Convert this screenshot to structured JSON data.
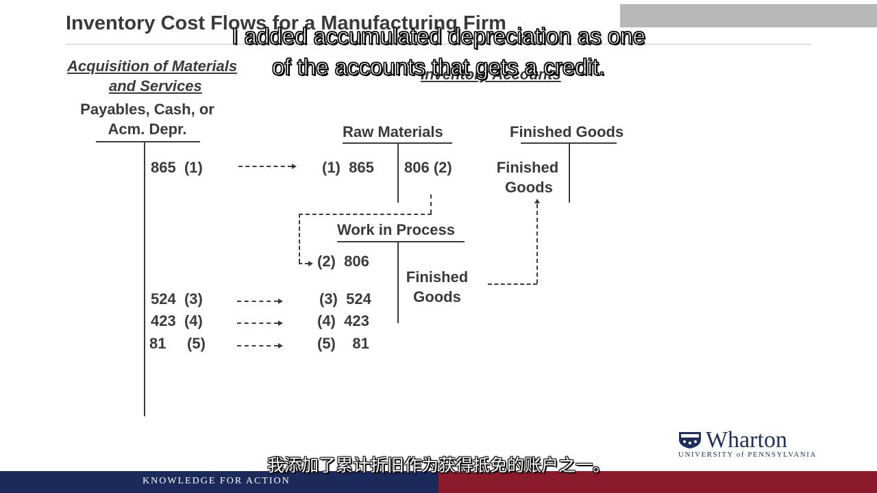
{
  "slide": {
    "title": "Inventory Cost Flows for a Manufacturing Firm",
    "left_section_heading_line1": "Acquisition of Materials",
    "left_section_heading_line2": "and Services",
    "right_section_heading": "Inventory Accounts"
  },
  "accounts": {
    "payables": {
      "name_line1": "Payables, Cash, or",
      "name_line2": "Acm. Depr.",
      "credits": [
        {
          "amount": "865",
          "ref": "(1)"
        },
        {
          "amount": "524",
          "ref": "(3)"
        },
        {
          "amount": "423",
          "ref": "(4)"
        },
        {
          "amount": "81",
          "ref": "(5)"
        }
      ]
    },
    "raw_materials": {
      "name": "Raw Materials",
      "debit": {
        "ref": "(1)",
        "amount": "865"
      },
      "credit": {
        "amount": "806",
        "ref": "(2)"
      }
    },
    "work_in_process": {
      "name": "Work in Process",
      "debits": [
        {
          "ref": "(2)",
          "amount": "806"
        },
        {
          "ref": "(3)",
          "amount": "524"
        },
        {
          "ref": "(4)",
          "amount": "423"
        },
        {
          "ref": "(5)",
          "amount": "81"
        }
      ],
      "credit_label_line1": "Finished",
      "credit_label_line2": "Goods"
    },
    "finished_goods": {
      "name": "Finished Goods",
      "debit_label_line1": "Finished",
      "debit_label_line2": "Goods"
    }
  },
  "captions": {
    "english_line1": "I added accumulated depreciation as one",
    "english_line2": "of the accounts that gets a credit.",
    "chinese": "我添加了累计折旧作为获得抵免的账户之一。"
  },
  "branding": {
    "logo_word": "Wharton",
    "logo_sub": "UNIVERSITY of PENNSYLVANIA",
    "footer_tagline": "KNOWLEDGE FOR ACTION",
    "navy": "#1b2a5b",
    "crimson": "#8b1a2b"
  }
}
